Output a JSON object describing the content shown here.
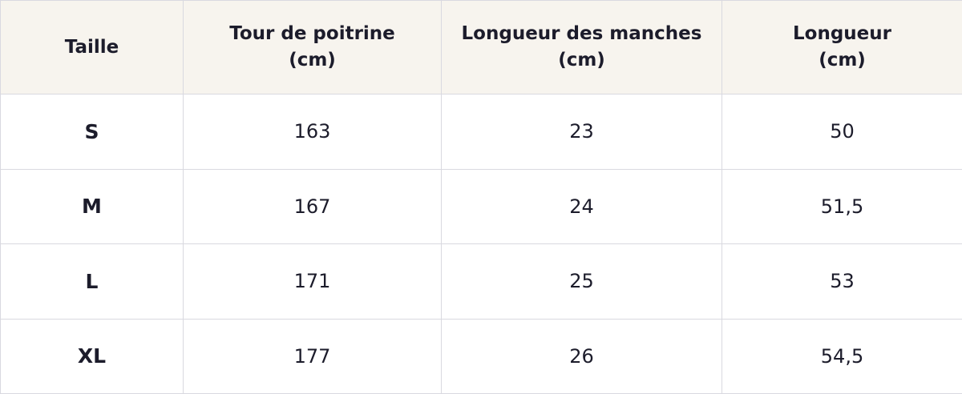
{
  "table": {
    "header": [
      "Taille",
      "Tour de poitrine\n(cm)",
      "Longueur des manches\n(cm)",
      "Longueur\n(cm)"
    ],
    "rows": [
      [
        "S",
        163,
        23,
        50
      ],
      [
        "M",
        167,
        24,
        "51,5"
      ],
      [
        "L",
        171,
        25,
        53
      ],
      [
        "XL",
        177,
        26,
        "54,5"
      ]
    ]
  }
}
